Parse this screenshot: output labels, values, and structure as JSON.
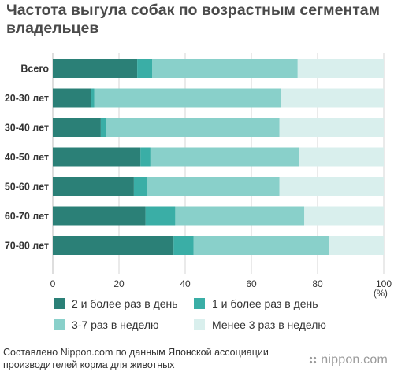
{
  "title": "Частота выгула собак по возрастным сегментам владельцев",
  "chart_data": {
    "type": "bar",
    "orientation": "horizontal",
    "stacked": true,
    "title": "Частота выгула собак по возрастным сегментам владельцев",
    "categories": [
      "Всего",
      "20-30 лет",
      "30-40 лет",
      "40-50 лет",
      "50-60 лет",
      "60-70 лет",
      "70-80 лет"
    ],
    "series": [
      {
        "name": "2 и более раз в день",
        "color": "#2b8077",
        "values": [
          25.5,
          11.5,
          14.5,
          26.5,
          24.5,
          28.0,
          36.5
        ]
      },
      {
        "name": "1 и более раз в день",
        "color": "#3aaea6",
        "values": [
          4.5,
          1.0,
          1.5,
          3.0,
          4.0,
          9.0,
          6.0
        ]
      },
      {
        "name": "3-7 раз в неделю",
        "color": "#89d0ca",
        "values": [
          44.0,
          56.5,
          52.5,
          45.0,
          40.0,
          39.0,
          41.0
        ]
      },
      {
        "name": "Менее 3 раз в неделю",
        "color": "#d9efed",
        "values": [
          26.0,
          31.0,
          31.5,
          25.5,
          31.5,
          24.0,
          16.5
        ]
      }
    ],
    "xlim": [
      0,
      100
    ],
    "xticks": [
      "0",
      "20",
      "40",
      "60",
      "80",
      "100"
    ],
    "unit": "(%)",
    "grid": true,
    "legend_placement": "bottom"
  },
  "footer": {
    "source": "Составлено Nippon.com по данным Японской ассоциации производителей корма для животных",
    "brand": "nippon.com"
  }
}
